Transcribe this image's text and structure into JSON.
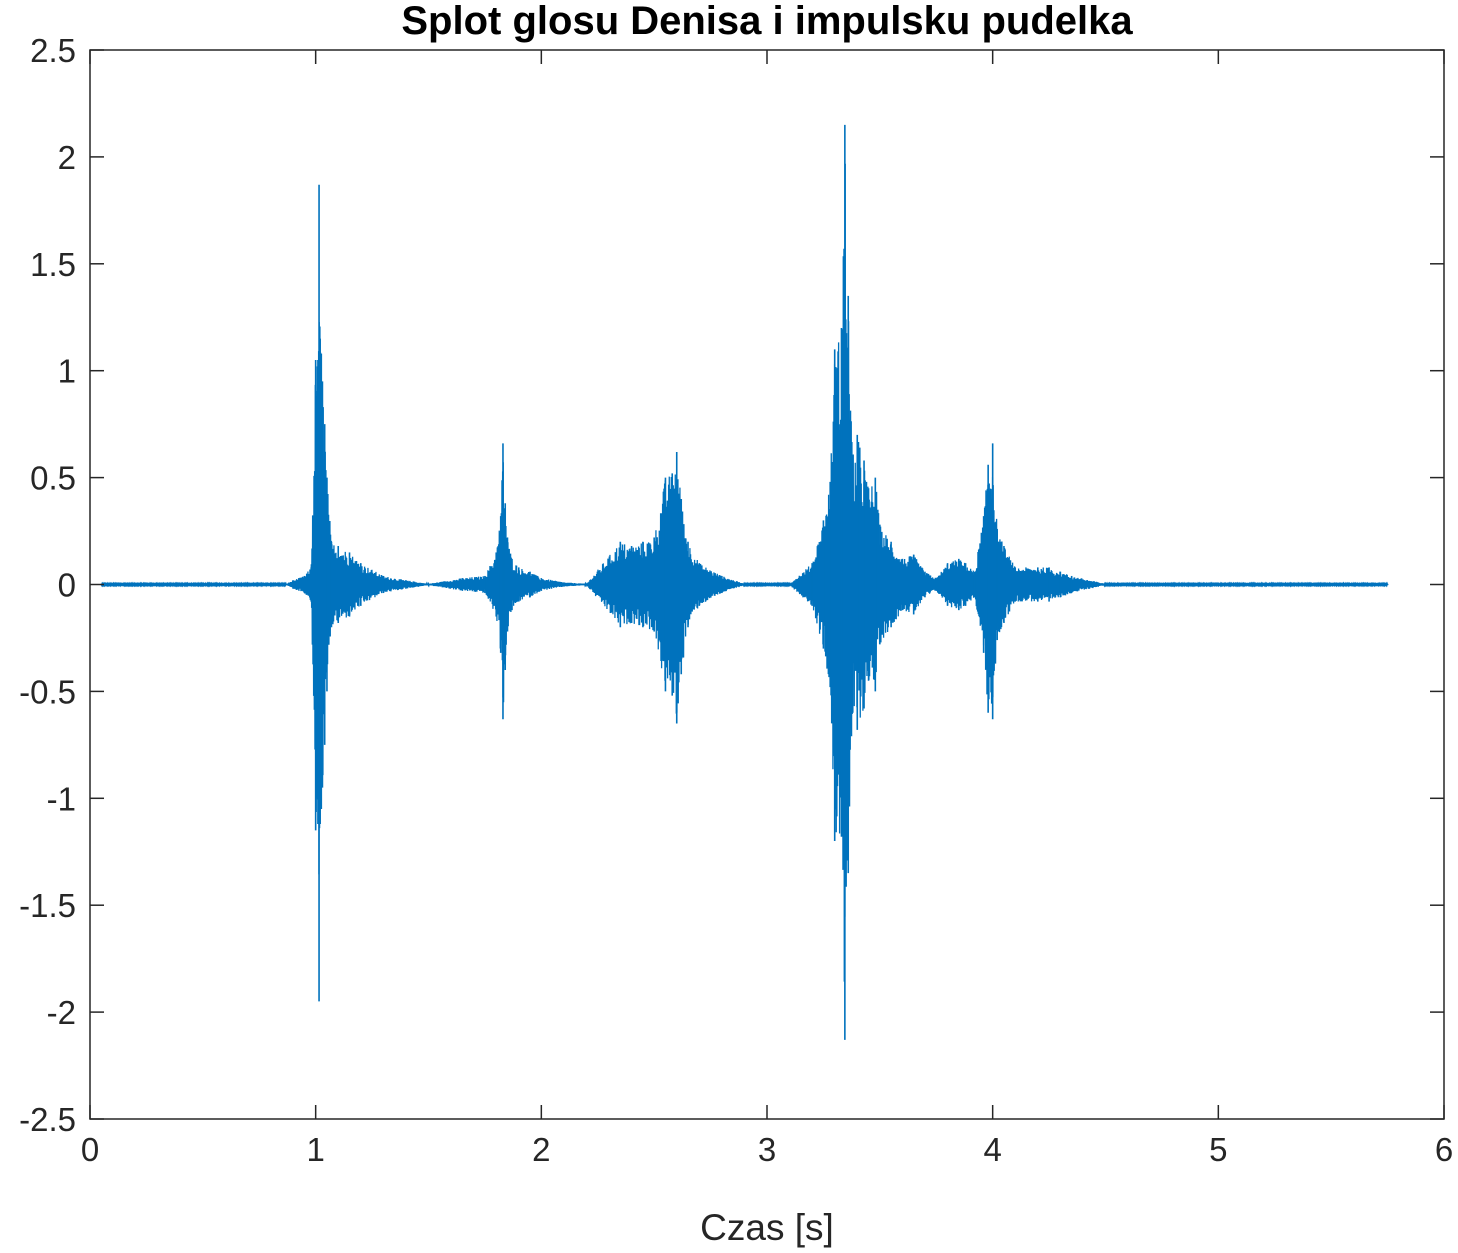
{
  "chart_data": {
    "type": "line",
    "title": "Splot glosu Denisa i impulsku pudelka",
    "xlabel": "Czas [s]",
    "ylabel": "",
    "xlim": [
      0,
      6
    ],
    "ylim": [
      -2.5,
      2.5
    ],
    "xticks": [
      0,
      1,
      2,
      3,
      4,
      5,
      6
    ],
    "xtick_labels": [
      "0",
      "1",
      "2",
      "3",
      "4",
      "5",
      "6"
    ],
    "yticks": [
      2.5,
      2,
      1.5,
      1,
      0.5,
      0,
      -0.5,
      -1,
      -1.5,
      -2,
      -2.5
    ],
    "ytick_labels": [
      "2.5",
      "2",
      "1.5",
      "1",
      "0.5",
      "0",
      "-0.5",
      "-1",
      "-1.5",
      "-2",
      "-2.5"
    ],
    "grid": false,
    "line_color": "#0072bd",
    "series": [
      {
        "x": [
          0.05,
          0.87,
          0.9,
          0.95,
          0.98,
          1.0,
          1.01,
          1.015,
          1.02,
          1.025,
          1.03,
          1.04,
          1.05,
          1.07,
          1.1,
          1.15,
          1.2,
          1.3,
          1.4,
          1.5,
          1.65,
          1.75,
          1.8,
          1.82,
          1.83,
          1.84,
          1.85,
          1.87,
          1.9,
          1.95,
          2.0,
          2.1,
          2.2,
          2.35,
          2.4,
          2.45,
          2.5,
          2.55,
          2.58,
          2.6,
          2.62,
          2.65,
          2.7,
          2.8,
          2.9,
          3.1,
          3.2,
          3.25,
          3.28,
          3.3,
          3.33,
          3.345,
          3.36,
          3.38,
          3.4,
          3.43,
          3.45,
          3.48,
          3.5,
          3.55,
          3.6,
          3.65,
          3.7,
          3.75,
          3.8,
          3.85,
          3.88,
          3.92,
          3.96,
          3.98,
          4.0,
          4.02,
          4.05,
          4.1,
          4.2,
          4.25,
          4.3,
          4.35,
          4.5,
          5.0,
          5.5,
          5.75
        ],
        "envelope_max": [
          0.003,
          0.003,
          0.02,
          0.04,
          0.08,
          1.05,
          1.05,
          1.87,
          1.15,
          1.08,
          0.95,
          0.75,
          0.5,
          0.2,
          0.18,
          0.15,
          0.1,
          0.04,
          0.02,
          0.003,
          0.03,
          0.04,
          0.15,
          0.32,
          0.66,
          0.38,
          0.22,
          0.12,
          0.08,
          0.06,
          0.03,
          0.01,
          0.003,
          0.2,
          0.18,
          0.2,
          0.22,
          0.5,
          0.52,
          0.62,
          0.4,
          0.2,
          0.1,
          0.04,
          0.003,
          0.003,
          0.1,
          0.3,
          0.48,
          1.1,
          1.2,
          2.15,
          1.35,
          0.6,
          0.7,
          0.58,
          0.45,
          0.5,
          0.28,
          0.2,
          0.12,
          0.14,
          0.06,
          0.03,
          0.1,
          0.12,
          0.1,
          0.06,
          0.32,
          0.56,
          0.66,
          0.26,
          0.18,
          0.08,
          0.08,
          0.08,
          0.06,
          0.04,
          0.003,
          0.003,
          0.003,
          0.003
        ],
        "envelope_min": [
          -0.003,
          -0.003,
          -0.02,
          -0.04,
          -0.08,
          -1.15,
          -1.12,
          -1.95,
          -1.12,
          -1.05,
          -0.95,
          -0.75,
          -0.5,
          -0.2,
          -0.18,
          -0.15,
          -0.1,
          -0.04,
          -0.02,
          -0.003,
          -0.03,
          -0.04,
          -0.15,
          -0.32,
          -0.63,
          -0.4,
          -0.22,
          -0.12,
          -0.08,
          -0.06,
          -0.03,
          -0.01,
          -0.003,
          -0.2,
          -0.18,
          -0.2,
          -0.22,
          -0.5,
          -0.52,
          -0.65,
          -0.42,
          -0.2,
          -0.1,
          -0.04,
          -0.003,
          -0.003,
          -0.1,
          -0.3,
          -0.48,
          -1.2,
          -1.18,
          -2.13,
          -1.35,
          -0.6,
          -0.68,
          -0.58,
          -0.45,
          -0.5,
          -0.28,
          -0.2,
          -0.12,
          -0.14,
          -0.06,
          -0.03,
          -0.1,
          -0.12,
          -0.1,
          -0.06,
          -0.32,
          -0.6,
          -0.63,
          -0.26,
          -0.18,
          -0.08,
          -0.08,
          -0.08,
          -0.06,
          -0.04,
          -0.003,
          -0.003,
          -0.003,
          -0.003
        ]
      }
    ]
  }
}
